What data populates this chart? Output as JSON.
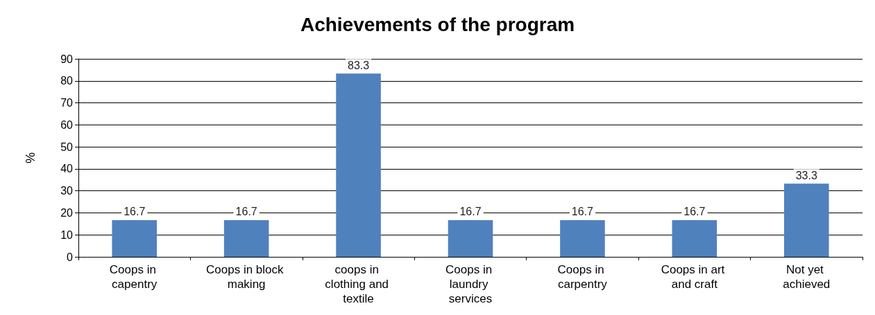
{
  "chart_data": {
    "type": "bar",
    "title": "Achievements of the program",
    "ylabel": "%",
    "categories": [
      "Coops in capentry",
      "Coops in block making",
      "coops in clothing and textile",
      "Coops in laundry services",
      "Coops in carpentry",
      "Coops in art and craft",
      "Not yet achieved"
    ],
    "values": [
      16.7,
      16.7,
      83.3,
      16.7,
      16.7,
      16.7,
      33.3
    ],
    "color": "#4f81bd",
    "ylim": [
      0,
      90
    ],
    "yticks": [
      0,
      10,
      20,
      30,
      40,
      50,
      60,
      70,
      80,
      90
    ],
    "grid": "y",
    "data_labels": true
  }
}
